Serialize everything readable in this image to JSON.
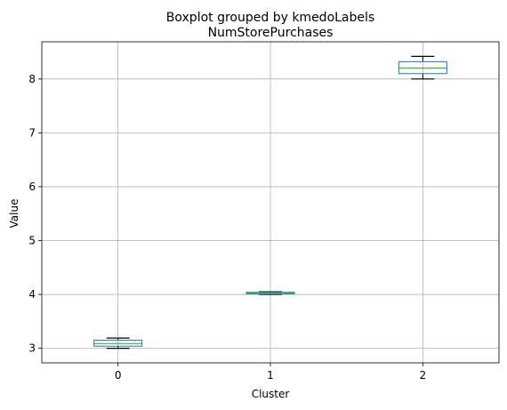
{
  "chart_data": {
    "type": "boxplot",
    "suptitle": "Boxplot grouped by kmedoLabels",
    "title": "NumStorePurchases",
    "xlabel": "Cluster",
    "ylabel": "Value",
    "categories": [
      "0",
      "1",
      "2"
    ],
    "yticks": [
      "3",
      "4",
      "5",
      "6",
      "7",
      "8"
    ],
    "ylim": [
      2.73,
      8.69
    ],
    "grid": true,
    "boxes": [
      {
        "category": "0",
        "whisker_low": 3.0,
        "q1": 3.04,
        "median": 3.09,
        "q3": 3.15,
        "whisker_high": 3.19
      },
      {
        "category": "1",
        "whisker_low": 4.0,
        "q1": 4.01,
        "median": 4.02,
        "q3": 4.04,
        "whisker_high": 4.05
      },
      {
        "category": "2",
        "whisker_low": 8.0,
        "q1": 8.1,
        "median": 8.2,
        "q3": 8.32,
        "whisker_high": 8.42
      }
    ],
    "colors": {
      "box": "#1f77b4",
      "median": "#2ca02c",
      "whisker": "#000000",
      "grid": "#b0b0b0",
      "spine": "#000000"
    }
  }
}
